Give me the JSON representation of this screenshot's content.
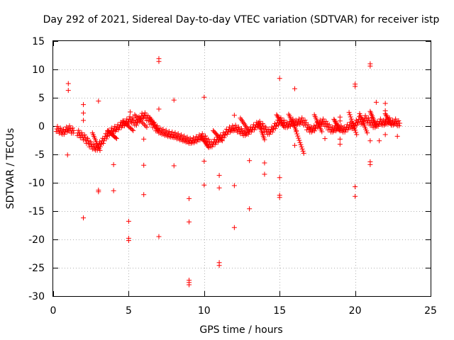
{
  "chart_data": {
    "type": "scatter",
    "title": "Day 292 of 2021, Sidereal Day-to-day VTEC variation (SDTVAR) for receiver istp",
    "xlabel": "GPS time / hours",
    "ylabel": "SDTVAR / TECUs",
    "xlim": [
      0,
      25
    ],
    "ylim": [
      -30,
      15
    ],
    "x_ticks": [
      "0",
      "5",
      "10",
      "15",
      "20",
      "25"
    ],
    "y_ticks": [
      "15",
      "10",
      "5",
      "0",
      "-5",
      "-10",
      "-15",
      "-20",
      "-25",
      "-30"
    ],
    "grid": true,
    "marker": "plus",
    "color": "#ff0000",
    "band": [
      [
        0.2,
        -0.5
      ],
      [
        0.4,
        -0.8
      ],
      [
        0.6,
        -1.0
      ],
      [
        0.8,
        -0.6
      ],
      [
        1.0,
        -0.4
      ],
      [
        1.2,
        -0.8
      ],
      [
        1.6,
        -1.2
      ],
      [
        1.8,
        -1.6
      ],
      [
        2.0,
        -2.0
      ],
      [
        2.2,
        -2.6
      ],
      [
        2.4,
        -3.2
      ],
      [
        2.6,
        -3.6
      ],
      [
        2.8,
        -3.8
      ],
      [
        3.0,
        -3.2
      ],
      [
        3.2,
        -2.6
      ],
      [
        3.4,
        -1.8
      ],
      [
        3.6,
        -1.2
      ],
      [
        3.8,
        -0.8
      ],
      [
        4.0,
        -0.5
      ],
      [
        4.2,
        -0.2
      ],
      [
        4.4,
        0.2
      ],
      [
        4.6,
        0.5
      ],
      [
        4.8,
        0.8
      ],
      [
        5.0,
        1.2
      ],
      [
        5.2,
        1.0
      ],
      [
        5.4,
        0.6
      ],
      [
        5.6,
        1.2
      ],
      [
        5.8,
        1.8
      ],
      [
        6.0,
        1.9
      ],
      [
        6.2,
        1.4
      ],
      [
        6.4,
        0.8
      ],
      [
        6.6,
        0.2
      ],
      [
        6.8,
        -0.4
      ],
      [
        7.0,
        -0.8
      ],
      [
        7.2,
        -1.0
      ],
      [
        7.4,
        -1.2
      ],
      [
        7.6,
        -1.4
      ],
      [
        7.8,
        -1.5
      ],
      [
        8.0,
        -1.6
      ],
      [
        8.2,
        -1.8
      ],
      [
        8.4,
        -2.0
      ],
      [
        8.6,
        -2.2
      ],
      [
        8.8,
        -2.4
      ],
      [
        9.0,
        -2.6
      ],
      [
        9.2,
        -2.5
      ],
      [
        9.4,
        -2.3
      ],
      [
        9.6,
        -2.0
      ],
      [
        9.8,
        -1.8
      ],
      [
        10.0,
        -2.2
      ],
      [
        10.2,
        -2.8
      ],
      [
        10.4,
        -3.2
      ],
      [
        10.6,
        -2.8
      ],
      [
        10.8,
        -2.4
      ],
      [
        11.0,
        -2.0
      ],
      [
        11.2,
        -1.6
      ],
      [
        11.4,
        -1.0
      ],
      [
        11.6,
        -0.6
      ],
      [
        11.8,
        -0.4
      ],
      [
        12.0,
        -0.3
      ],
      [
        12.2,
        -0.6
      ],
      [
        12.4,
        -0.9
      ],
      [
        12.6,
        -1.2
      ],
      [
        12.8,
        -1.0
      ],
      [
        13.0,
        -0.6
      ],
      [
        13.2,
        -0.2
      ],
      [
        13.4,
        0.2
      ],
      [
        13.6,
        0.4
      ],
      [
        13.8,
        0.0
      ],
      [
        14.0,
        -0.6
      ],
      [
        14.2,
        -1.0
      ],
      [
        14.4,
        -0.6
      ],
      [
        14.6,
        0.0
      ],
      [
        14.8,
        0.6
      ],
      [
        15.0,
        1.0
      ],
      [
        15.2,
        0.6
      ],
      [
        15.4,
        0.2
      ],
      [
        15.6,
        0.4
      ],
      [
        15.8,
        0.8
      ],
      [
        16.0,
        0.6
      ],
      [
        16.2,
        0.8
      ],
      [
        16.4,
        1.0
      ],
      [
        16.6,
        0.6
      ],
      [
        16.8,
        -0.2
      ],
      [
        17.0,
        -0.6
      ],
      [
        17.2,
        -0.4
      ],
      [
        17.4,
        0.2
      ],
      [
        17.6,
        0.6
      ],
      [
        17.8,
        0.8
      ],
      [
        18.0,
        0.4
      ],
      [
        18.2,
        -0.2
      ],
      [
        18.4,
        -0.6
      ],
      [
        18.6,
        -0.4
      ],
      [
        18.8,
        -0.2
      ],
      [
        19.0,
        -0.4
      ],
      [
        19.2,
        -0.6
      ],
      [
        19.4,
        -0.2
      ],
      [
        19.6,
        0.2
      ],
      [
        19.8,
        0.0
      ],
      [
        20.0,
        0.6
      ],
      [
        20.2,
        1.2
      ],
      [
        20.4,
        0.8
      ],
      [
        20.6,
        1.4
      ],
      [
        20.8,
        1.0
      ],
      [
        21.0,
        0.6
      ],
      [
        21.2,
        0.2
      ],
      [
        21.4,
        0.4
      ],
      [
        21.6,
        0.8
      ],
      [
        21.8,
        0.6
      ],
      [
        22.0,
        0.8
      ],
      [
        22.2,
        1.0
      ],
      [
        22.4,
        0.6
      ],
      [
        22.6,
        0.8
      ],
      [
        22.8,
        0.5
      ]
    ],
    "streaks": [
      [
        2.6,
        -1.2,
        3.1,
        -4.3
      ],
      [
        3.6,
        -0.8,
        4.2,
        -2.2
      ],
      [
        4.6,
        0.9,
        5.3,
        -0.8
      ],
      [
        5.4,
        2.0,
        6.2,
        -0.2
      ],
      [
        6.4,
        1.5,
        7.0,
        -1.0
      ],
      [
        9.8,
        -1.8,
        10.3,
        -3.8
      ],
      [
        10.6,
        -0.8,
        11.2,
        -2.6
      ],
      [
        12.4,
        1.4,
        13.0,
        -1.0
      ],
      [
        13.6,
        0.6,
        14.0,
        -2.4
      ],
      [
        14.8,
        2.0,
        15.3,
        -0.2
      ],
      [
        15.6,
        2.1,
        16.1,
        -0.8
      ],
      [
        16.1,
        -1.0,
        16.6,
        -4.8
      ],
      [
        17.3,
        2.0,
        17.8,
        -1.0
      ],
      [
        18.6,
        1.2,
        19.0,
        -0.8
      ],
      [
        19.6,
        2.4,
        20.1,
        -1.5
      ],
      [
        20.3,
        2.2,
        20.8,
        -1.2
      ],
      [
        21.0,
        2.6,
        21.4,
        0.0
      ],
      [
        22.0,
        2.2,
        22.4,
        0.2
      ]
    ],
    "scatter": [
      [
        1.0,
        7.5
      ],
      [
        1.0,
        6.3
      ],
      [
        0.95,
        -5.1
      ],
      [
        2.0,
        3.8
      ],
      [
        2.0,
        2.3
      ],
      [
        2.0,
        1.0
      ],
      [
        2.0,
        -16.2
      ],
      [
        3.0,
        4.4
      ],
      [
        3.0,
        -11.3
      ],
      [
        3.0,
        -11.6
      ],
      [
        4.0,
        -6.8
      ],
      [
        4.0,
        -11.4
      ],
      [
        5.0,
        -16.8
      ],
      [
        5.0,
        -19.8
      ],
      [
        5.0,
        -20.2
      ],
      [
        5.1,
        2.5
      ],
      [
        6.0,
        -2.3
      ],
      [
        6.0,
        -6.9
      ],
      [
        6.0,
        -12.1
      ],
      [
        7.0,
        11.9
      ],
      [
        7.0,
        11.4
      ],
      [
        7.0,
        3.0
      ],
      [
        7.0,
        -19.5
      ],
      [
        8.0,
        4.6
      ],
      [
        8.0,
        -7.0
      ],
      [
        9.0,
        -12.8
      ],
      [
        9.0,
        -16.9
      ],
      [
        9.0,
        -27.2
      ],
      [
        9.0,
        -27.6
      ],
      [
        9.0,
        -28.0
      ],
      [
        10.0,
        5.1
      ],
      [
        10.0,
        -6.2
      ],
      [
        10.0,
        -10.4
      ],
      [
        11.0,
        -8.7
      ],
      [
        11.0,
        -10.9
      ],
      [
        11.0,
        -24.1
      ],
      [
        11.0,
        -24.6
      ],
      [
        12.0,
        1.9
      ],
      [
        12.0,
        -10.5
      ],
      [
        12.0,
        -17.9
      ],
      [
        13.0,
        -6.1
      ],
      [
        13.0,
        -14.6
      ],
      [
        14.0,
        -6.5
      ],
      [
        14.0,
        -8.5
      ],
      [
        15.0,
        8.4
      ],
      [
        15.0,
        -9.1
      ],
      [
        15.0,
        -12.2
      ],
      [
        15.0,
        -12.6
      ],
      [
        16.0,
        6.6
      ],
      [
        16.0,
        -3.4
      ],
      [
        17.0,
        -0.4
      ],
      [
        18.0,
        -2.2
      ],
      [
        19.0,
        -2.3
      ],
      [
        19.0,
        -3.2
      ],
      [
        19.0,
        1.6
      ],
      [
        19.0,
        0.9
      ],
      [
        20.0,
        7.4
      ],
      [
        20.0,
        7.0
      ],
      [
        20.0,
        -10.7
      ],
      [
        20.0,
        -12.4
      ],
      [
        21.0,
        11.0
      ],
      [
        21.0,
        10.6
      ],
      [
        21.0,
        -2.6
      ],
      [
        21.0,
        -6.3
      ],
      [
        21.0,
        -6.8
      ],
      [
        21.4,
        4.2
      ],
      [
        21.6,
        -2.6
      ],
      [
        22.0,
        4.0
      ],
      [
        22.0,
        2.7
      ],
      [
        22.0,
        -1.5
      ],
      [
        22.0,
        0.8
      ],
      [
        22.8,
        -1.8
      ]
    ]
  }
}
